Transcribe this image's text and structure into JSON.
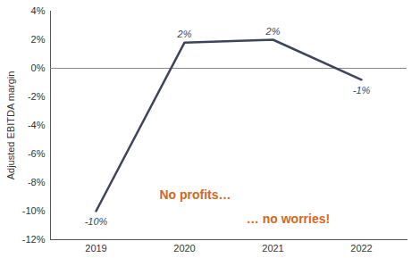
{
  "chart_data": {
    "type": "line",
    "y_label": "Adjusted EBITDA margin",
    "categories": [
      "2019",
      "2020",
      "2021",
      "2022"
    ],
    "values": [
      -10,
      1.8,
      2,
      -0.8
    ],
    "value_labels": [
      "-10%",
      "2%",
      "2%",
      "-1%"
    ],
    "data_labels": true,
    "color": "#3d4659",
    "ylim": [
      -12,
      4
    ],
    "yticks": [
      {
        "value": -12,
        "label": "-12%"
      },
      {
        "value": -10,
        "label": "-10%"
      },
      {
        "value": -8,
        "label": "-8%"
      },
      {
        "value": -6,
        "label": "-6%"
      },
      {
        "value": -4,
        "label": "-4%"
      },
      {
        "value": -2,
        "label": "-2%"
      },
      {
        "value": 0,
        "label": "0%"
      },
      {
        "value": 2,
        "label": "2%"
      },
      {
        "value": 4,
        "label": "4%"
      }
    ],
    "grid": false,
    "annotations": [
      "No profits…",
      "… no worries!"
    ]
  }
}
